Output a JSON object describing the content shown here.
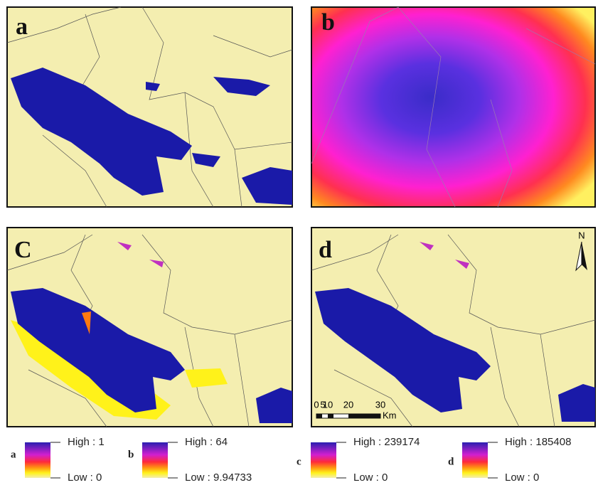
{
  "panels": [
    {
      "label": "a"
    },
    {
      "label": "b"
    },
    {
      "label": "C"
    },
    {
      "label": "d",
      "north": "N",
      "scale_bar": {
        "labels": [
          "0",
          "5",
          "10",
          "20",
          "30"
        ],
        "unit": "Km"
      }
    }
  ],
  "legends": [
    {
      "label": "a",
      "high": "High : 1",
      "low": "Low : 0"
    },
    {
      "label": "b",
      "high": "High : 64",
      "low": "Low : 9.94733"
    },
    {
      "label": "c",
      "high": "High : 239174",
      "low": "Low : 0"
    },
    {
      "label": "d",
      "high": "High : 185408",
      "low": "Low : 0"
    }
  ]
}
